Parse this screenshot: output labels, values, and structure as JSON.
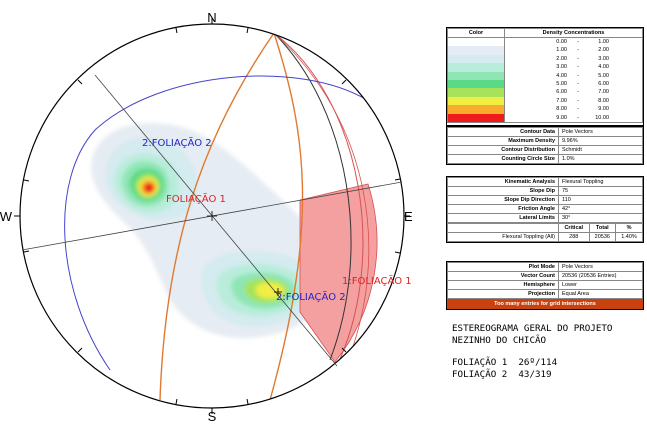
{
  "stereonet": {
    "north": "N",
    "south": "S",
    "east": "E",
    "west": "W",
    "labels": {
      "pole1_a": "FOLIAÇÃO 1",
      "pole2_a": "2:FOLIAÇÃO 2",
      "pole2_b": "2:FOLIAÇÃO 2",
      "plane1": "1:FOLIAÇÃO 1"
    },
    "colors": {
      "plane1": "#d95050",
      "plane2": "#4444cc",
      "slope": "#333333",
      "lateral": "#e07a30",
      "critical_zone": "#f4a0a0",
      "label_red": "#e02020",
      "label_blue": "#2222cc"
    }
  },
  "density_legend": {
    "col_color": "Color",
    "col_density": "Density Concentrations",
    "bins": [
      {
        "from": "0.00",
        "to": "1.00",
        "color": "#ffffff"
      },
      {
        "from": "1.00",
        "to": "2.00",
        "color": "#e6ecf3"
      },
      {
        "from": "2.00",
        "to": "3.00",
        "color": "#d4ebef"
      },
      {
        "from": "3.00",
        "to": "4.00",
        "color": "#b9ecdb"
      },
      {
        "from": "4.00",
        "to": "5.00",
        "color": "#8fe6b4"
      },
      {
        "from": "5.00",
        "to": "6.00",
        "color": "#5ad987"
      },
      {
        "from": "6.00",
        "to": "7.00",
        "color": "#a6e35a"
      },
      {
        "from": "7.00",
        "to": "8.00",
        "color": "#f0ee44"
      },
      {
        "from": "8.00",
        "to": "9.00",
        "color": "#f9ab2b"
      },
      {
        "from": "9.00",
        "to": "10.00",
        "color": "#ee1c1c"
      }
    ]
  },
  "contour": {
    "rows": [
      {
        "label": "Contour Data",
        "value": "Pole Vectors"
      },
      {
        "label": "Maximum Density",
        "value": "9.96%"
      },
      {
        "label": "Contour Distribution",
        "value": "Schmidt"
      },
      {
        "label": "Counting Circle Size",
        "value": "1.0%"
      }
    ]
  },
  "kinematic": {
    "rows": [
      {
        "label": "Kinematic Analysis",
        "value": "Flexural Toppling"
      },
      {
        "label": "Slope Dip",
        "value": "75"
      },
      {
        "label": "Slope Dip Direction",
        "value": "110"
      },
      {
        "label": "Friction Angle",
        "value": "42°"
      },
      {
        "label": "Lateral Limits",
        "value": "30°"
      }
    ],
    "headers": [
      "Critical",
      "Total",
      "%"
    ],
    "result": {
      "label": "Flexural Toppling (All)",
      "critical": "288",
      "total": "20536",
      "percent": "1.40%"
    }
  },
  "plot": {
    "rows": [
      {
        "label": "Plot Mode",
        "value": "Pole Vectors"
      },
      {
        "label": "Vector Count",
        "value": "20536 (20536 Entries)"
      },
      {
        "label": "Hemisphere",
        "value": "Lower"
      },
      {
        "label": "Projection",
        "value": "Equal Area"
      }
    ],
    "warning": "Too many entries for grid intersections"
  },
  "notes": {
    "title_1": "ESTEREOGRAMA GERAL DO PROJETO",
    "title_2": "NEZINHO DO CHICÃO",
    "line_1": "FOLIAÇÃO 1  26º/114",
    "line_2": "FOLIAÇÃO 2  43/319"
  }
}
